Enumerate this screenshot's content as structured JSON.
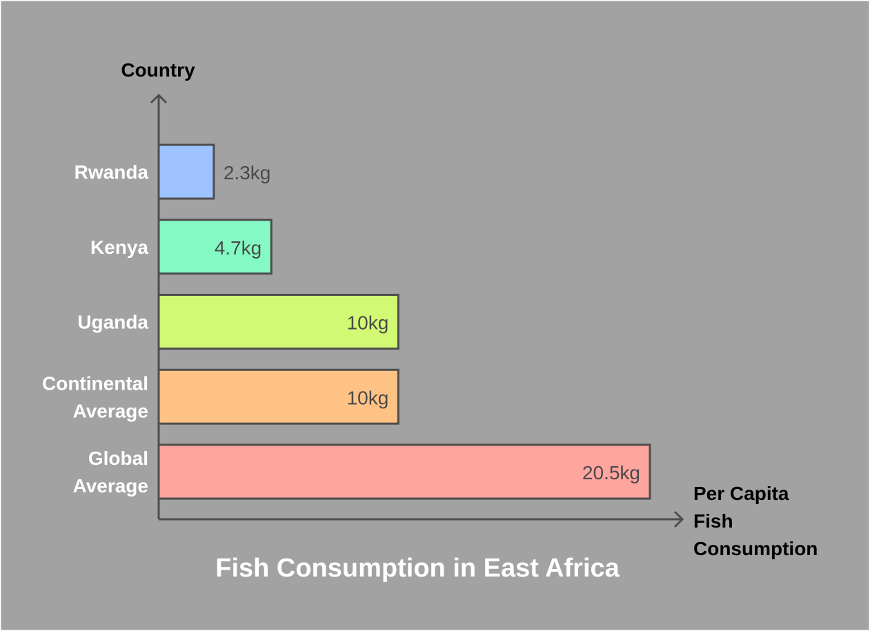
{
  "chart_data": {
    "type": "bar",
    "orientation": "horizontal",
    "title": "Fish Consumption in East Africa",
    "xlabel": "Per Capita Fish Consumption",
    "xlabel_lines": [
      "Per Capita",
      "Fish",
      "Consumption"
    ],
    "ylabel": "Country",
    "unit": "kg",
    "categories": [
      "Rwanda",
      "Kenya",
      "Uganda",
      "Continental Average",
      "Global Average"
    ],
    "category_lines": [
      [
        "Rwanda"
      ],
      [
        "Kenya"
      ],
      [
        "Uganda"
      ],
      [
        "Continental",
        "Average"
      ],
      [
        "Global",
        "Average"
      ]
    ],
    "values": [
      2.3,
      4.7,
      10,
      10,
      20.5
    ],
    "data_labels": [
      "2.3kg",
      "4.7kg",
      "10kg",
      "10kg",
      "20.5kg"
    ],
    "colors": [
      "#9ec3ff",
      "#84f9c4",
      "#d1f974",
      "#ffc285",
      "#ffa5a0"
    ],
    "xlim": [
      0,
      20.5
    ],
    "grid": false,
    "legend": "none"
  }
}
